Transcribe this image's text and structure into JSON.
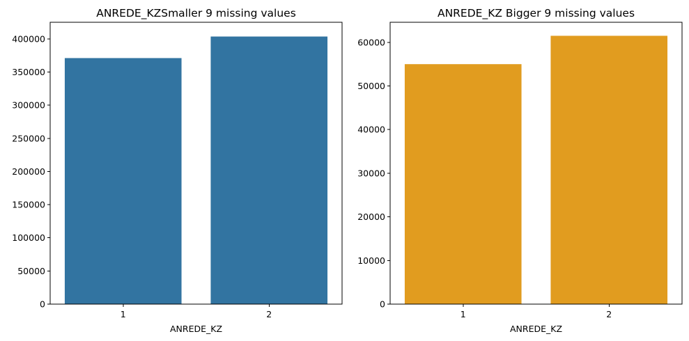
{
  "chart_data": [
    {
      "type": "bar",
      "title": "ANREDE_KZSmaller 9 missing values",
      "xlabel": "ANREDE_KZ",
      "ylabel": "",
      "categories": [
        "1",
        "2"
      ],
      "values": [
        371000,
        403500
      ],
      "ylim": [
        0,
        425000
      ],
      "yticks": [
        0,
        50000,
        100000,
        150000,
        200000,
        250000,
        300000,
        350000,
        400000
      ],
      "color": "#3274a1",
      "grid": false
    },
    {
      "type": "bar",
      "title": "ANREDE_KZ Bigger 9 missing values",
      "xlabel": "ANREDE_KZ",
      "ylabel": "",
      "categories": [
        "1",
        "2"
      ],
      "values": [
        55000,
        61500
      ],
      "ylim": [
        0,
        64600
      ],
      "yticks": [
        0,
        10000,
        20000,
        30000,
        40000,
        50000,
        60000
      ],
      "color": "#e19c1f",
      "grid": false
    }
  ]
}
